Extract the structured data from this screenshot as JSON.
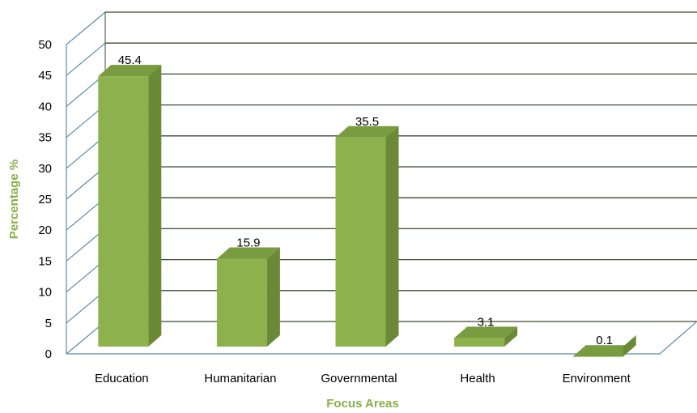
{
  "chart_data": {
    "type": "bar",
    "title": "",
    "xlabel": "Focus Areas",
    "ylabel": "Percentage %",
    "categories": [
      "Education",
      "Humanitarian",
      "Governmental",
      "Health",
      "Environment"
    ],
    "values": [
      45.4,
      15.9,
      35.5,
      3.1,
      0.1
    ],
    "value_labels": [
      "45.4",
      "15.9",
      "35.5",
      "3.1",
      "0.1"
    ],
    "y_ticks": [
      "0",
      "5",
      "10",
      "15",
      "20",
      "25",
      "30",
      "35",
      "40",
      "45",
      "50"
    ],
    "ylim": [
      0,
      50
    ],
    "grid": true,
    "legend": "none",
    "style": "3d",
    "colors": {
      "bar_front": "#8DB24D",
      "bar_side": "#6B8A37",
      "bar_top": "#789C3F",
      "axis_title": "#8AAE4A",
      "gridline": "#3A4A2F",
      "wall_diagonal": "#5F8AA8"
    }
  }
}
